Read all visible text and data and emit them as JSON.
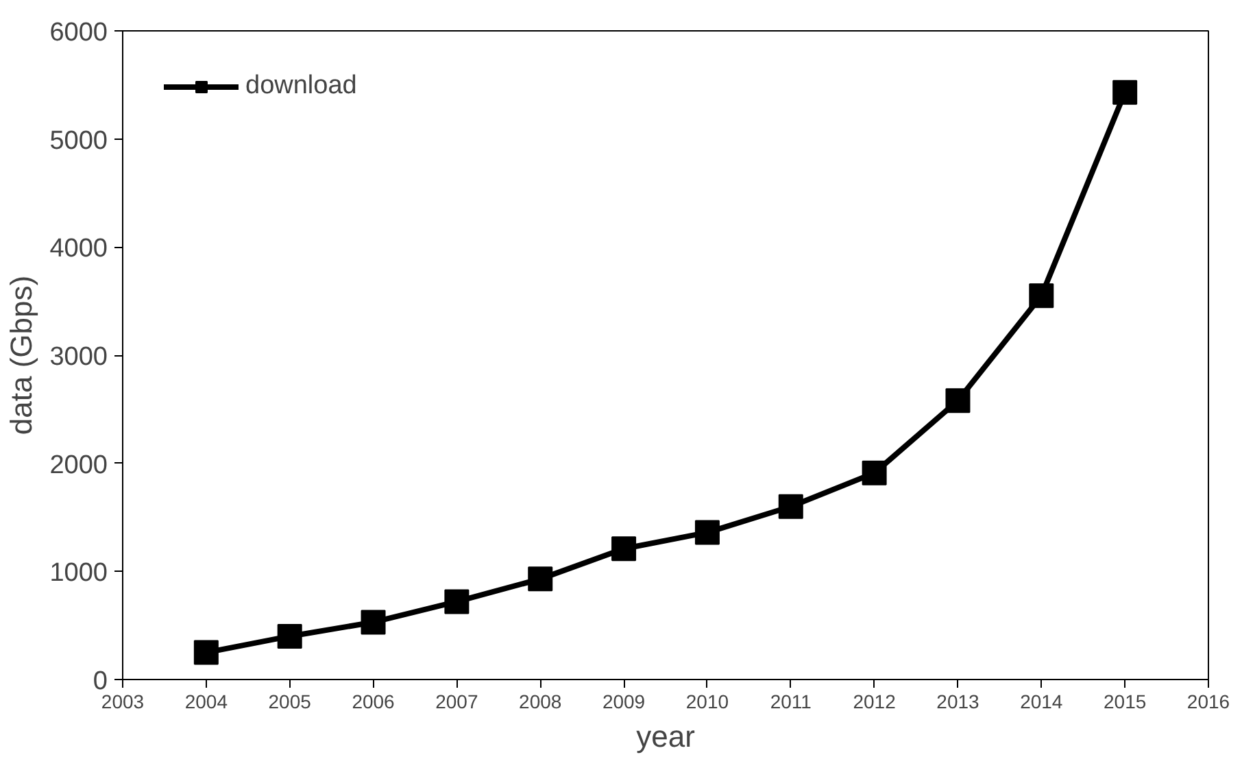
{
  "chart_data": {
    "type": "line",
    "xlabel": "year",
    "ylabel": "data (Gbps)",
    "x": [
      2004,
      2005,
      2006,
      2007,
      2008,
      2009,
      2010,
      2011,
      2012,
      2013,
      2014,
      2015
    ],
    "series": [
      {
        "name": "download",
        "color": "#000000",
        "values": [
          250,
          400,
          530,
          720,
          930,
          1210,
          1360,
          1600,
          1910,
          2580,
          3550,
          5430
        ]
      }
    ],
    "xlim": [
      2003,
      2016
    ],
    "xticks": [
      2003,
      2004,
      2005,
      2006,
      2007,
      2008,
      2009,
      2010,
      2011,
      2012,
      2013,
      2014,
      2015,
      2016
    ],
    "ylim": [
      0,
      6000
    ],
    "yticks": [
      0,
      1000,
      2000,
      3000,
      4000,
      5000,
      6000
    ],
    "grid": false,
    "legend": "top left",
    "marker": "square",
    "line_style": "solid"
  }
}
